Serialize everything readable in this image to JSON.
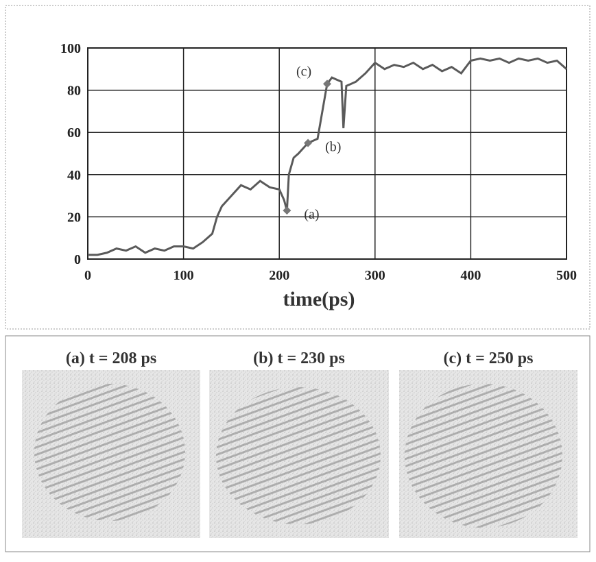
{
  "chart_data": {
    "type": "line",
    "x": [
      0,
      10,
      20,
      30,
      40,
      50,
      60,
      70,
      80,
      90,
      100,
      110,
      120,
      130,
      135,
      140,
      150,
      160,
      170,
      180,
      190,
      200,
      205,
      208,
      210,
      215,
      220,
      230,
      240,
      245,
      250,
      255,
      260,
      265,
      267,
      270,
      280,
      290,
      300,
      310,
      320,
      330,
      340,
      350,
      360,
      370,
      380,
      390,
      400,
      410,
      420,
      430,
      440,
      450,
      460,
      470,
      480,
      490,
      500
    ],
    "values": [
      2,
      2,
      3,
      5,
      4,
      6,
      3,
      5,
      4,
      6,
      6,
      5,
      8,
      12,
      20,
      25,
      30,
      35,
      33,
      37,
      34,
      33,
      28,
      23,
      40,
      48,
      50,
      55,
      57,
      70,
      83,
      86,
      85,
      84,
      62,
      82,
      84,
      88,
      93,
      90,
      92,
      91,
      93,
      90,
      92,
      89,
      91,
      88,
      94,
      95,
      94,
      95,
      93,
      95,
      94,
      95,
      93,
      94,
      90
    ],
    "color": "#5a5a5a",
    "xlabel": "time(ps)",
    "xlim": [
      0,
      500
    ],
    "xticks": [
      0,
      100,
      200,
      300,
      400,
      500
    ],
    "ylim": [
      0,
      100
    ],
    "yticks": [
      0,
      20,
      40,
      60,
      80,
      100
    ],
    "grid": true,
    "annotations": [
      {
        "text": "(a)",
        "x": 208,
        "y": 23
      },
      {
        "text": "(b)",
        "x": 230,
        "y": 55
      },
      {
        "text": "(c)",
        "x": 250,
        "y": 83
      }
    ]
  },
  "panels": [
    "(a) t = 208 ps",
    "(b) t = 230 ps",
    "(c) t = 250 ps"
  ]
}
